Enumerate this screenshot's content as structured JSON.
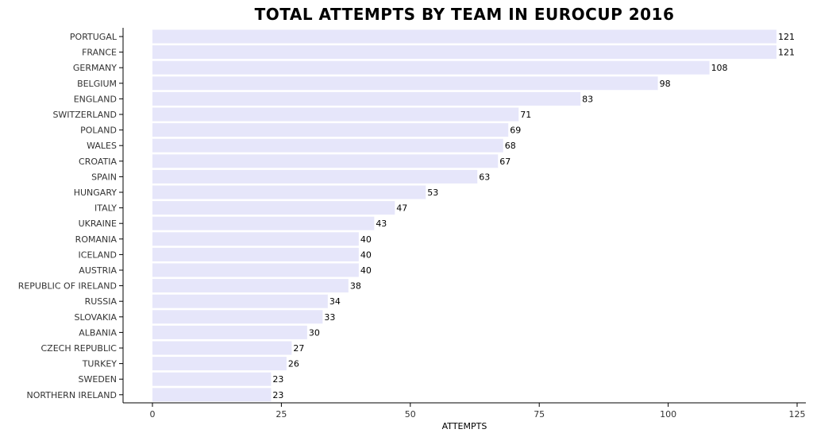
{
  "chart_data": {
    "type": "bar",
    "orientation": "horizontal",
    "title": "TOTAL ATTEMPTS BY TEAM IN EUROCUP 2016",
    "xlabel": "ATTEMPTS",
    "ylabel": "",
    "xlim": [
      0,
      125
    ],
    "xticks": [
      "0",
      "25",
      "50",
      "75",
      "100",
      "125"
    ],
    "grid": false,
    "legend": "none",
    "bar_color": "#e6e6fa",
    "categories": [
      "Portugal",
      "France",
      "Germany",
      "Belgium",
      "England",
      "Switzerland",
      "Poland",
      "Wales",
      "Croatia",
      "Spain",
      "Hungary",
      "Italy",
      "Ukraine",
      "Romania",
      "Iceland",
      "Austria",
      "Republic of Ireland",
      "Russia",
      "Slovakia",
      "Albania",
      "Czech Republic",
      "Turkey",
      "Sweden",
      "Northern Ireland"
    ],
    "values": [
      121,
      121,
      108,
      98,
      83,
      71,
      69,
      68,
      67,
      63,
      53,
      47,
      43,
      40,
      40,
      40,
      38,
      34,
      33,
      30,
      27,
      26,
      23,
      23
    ]
  }
}
